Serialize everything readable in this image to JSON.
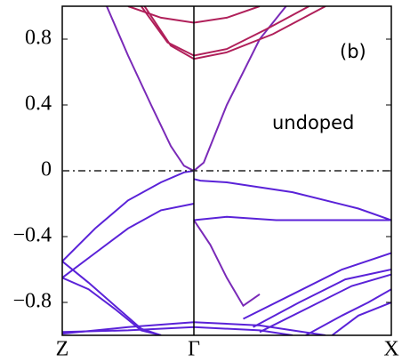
{
  "chart_data": {
    "type": "line",
    "annotations": [
      "(b)",
      "undoped"
    ],
    "xlim": [
      0,
      1
    ],
    "xticks": [
      {
        "value": 0,
        "label": "Z"
      },
      {
        "value": 0.4,
        "label": "Γ"
      },
      {
        "value": 1,
        "label": "X"
      }
    ],
    "ylim": [
      -1,
      1
    ],
    "yticks": [
      {
        "value": -0.8,
        "label": "−0.8"
      },
      {
        "value": -0.4,
        "label": "−0.4"
      },
      0,
      0.4,
      0.8
    ],
    "hline": 0,
    "series": [
      {
        "color": "#7a2ab8",
        "x": [
          0.135,
          0.2,
          0.27,
          0.33,
          0.37,
          0.4,
          0.43,
          0.5,
          0.6,
          0.68
        ],
        "values": [
          1.0,
          0.7,
          0.4,
          0.15,
          0.03,
          0.0,
          0.05,
          0.4,
          0.8,
          1.0
        ]
      },
      {
        "color": "#b0205a",
        "x": [
          0.2,
          0.3,
          0.4,
          0.5,
          0.6
        ],
        "values": [
          1.0,
          0.93,
          0.9,
          0.93,
          1.0
        ]
      },
      {
        "color": "#b0205a",
        "x": [
          0.24,
          0.32,
          0.4,
          0.5,
          0.62,
          0.75
        ],
        "values": [
          1.0,
          0.78,
          0.7,
          0.74,
          0.86,
          1.0
        ]
      },
      {
        "color": "#b0205a",
        "x": [
          0.25,
          0.33,
          0.4,
          0.5,
          0.64,
          0.8
        ],
        "values": [
          1.0,
          0.76,
          0.68,
          0.72,
          0.83,
          1.0
        ]
      },
      {
        "color": "#5a22d8",
        "x": [
          0,
          0.1,
          0.2,
          0.3,
          0.37,
          0.4
        ],
        "values": [
          -0.55,
          -0.35,
          -0.18,
          -0.07,
          -0.01,
          0.0
        ]
      },
      {
        "color": "#5a22d8",
        "x": [
          0.4,
          0.42,
          0.5,
          0.7,
          0.9,
          1.0
        ],
        "values": [
          -0.05,
          -0.06,
          -0.07,
          -0.13,
          -0.23,
          -0.3
        ]
      },
      {
        "color": "#5a22d8",
        "x": [
          0,
          0.1,
          0.2,
          0.3,
          0.4
        ],
        "values": [
          -0.65,
          -0.5,
          -0.35,
          -0.24,
          -0.2
        ]
      },
      {
        "color": "#7a2ab8",
        "x": [
          0.4,
          0.45,
          0.5,
          0.55,
          0.6
        ],
        "values": [
          -0.3,
          -0.45,
          -0.65,
          -0.82,
          -0.75
        ]
      },
      {
        "color": "#5a22d8",
        "x": [
          0.4,
          0.5,
          0.65,
          0.8,
          0.92,
          1.0
        ],
        "values": [
          -0.3,
          -0.28,
          -0.3,
          -0.3,
          -0.3,
          -0.3
        ]
      },
      {
        "color": "#5a22d8",
        "x": [
          0,
          0.08,
          0.16,
          0.24,
          0.3
        ],
        "values": [
          -0.55,
          -0.68,
          -0.82,
          -0.96,
          -1.0
        ]
      },
      {
        "color": "#5a22d8",
        "x": [
          0,
          0.08,
          0.16,
          0.24,
          0.3
        ],
        "values": [
          -0.65,
          -0.72,
          -0.84,
          -0.97,
          -1.0
        ]
      },
      {
        "color": "#5a22d8",
        "x": [
          0,
          0.2,
          0.4,
          0.6,
          0.8
        ],
        "values": [
          -0.99,
          -0.95,
          -0.92,
          -0.94,
          -1.0
        ]
      },
      {
        "color": "#5a22d8",
        "x": [
          0,
          0.2,
          0.4,
          0.6,
          0.7
        ],
        "values": [
          -0.98,
          -0.97,
          -0.95,
          -0.97,
          -1.0
        ]
      },
      {
        "color": "#5a22d8",
        "x": [
          0.55,
          0.7,
          0.85,
          1.0
        ],
        "values": [
          -0.9,
          -0.75,
          -0.6,
          -0.5
        ]
      },
      {
        "color": "#5a22d8",
        "x": [
          0.58,
          0.72,
          0.86,
          1.0
        ],
        "values": [
          -0.95,
          -0.8,
          -0.66,
          -0.6
        ]
      },
      {
        "color": "#5a22d8",
        "x": [
          0.6,
          0.75,
          0.88,
          1.0
        ],
        "values": [
          -0.98,
          -0.83,
          -0.7,
          -0.63
        ]
      },
      {
        "color": "#5a22d8",
        "x": [
          0.74,
          0.85,
          0.93,
          1.0
        ],
        "values": [
          -1.0,
          -0.88,
          -0.8,
          -0.72
        ]
      },
      {
        "color": "#5a22d8",
        "x": [
          0.82,
          0.9,
          1.0
        ],
        "values": [
          -1.0,
          -0.88,
          -0.8
        ]
      }
    ]
  }
}
